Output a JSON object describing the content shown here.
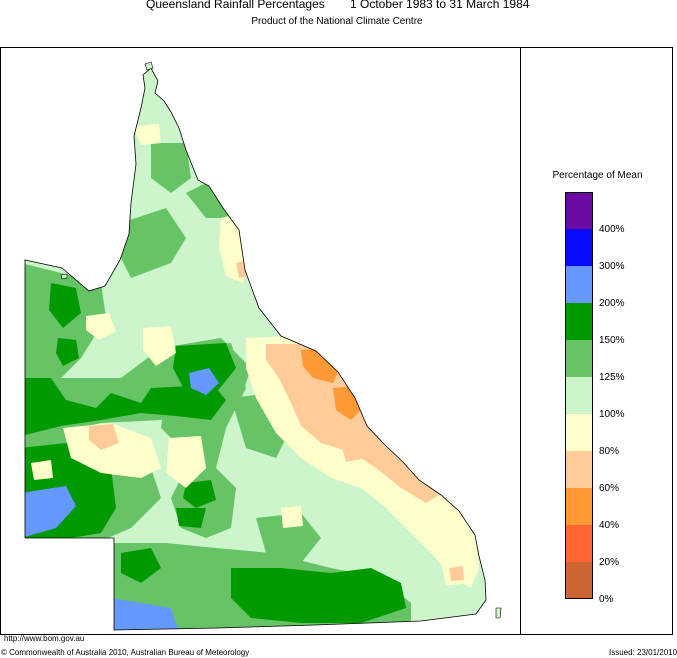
{
  "header": {
    "title": "Queensland Rainfall Percentages",
    "period": "1 October 1983 to 31 March 1984",
    "subtitle": "Product of the National Climate Centre"
  },
  "legend": {
    "title": "Percentage of Mean",
    "classes": [
      {
        "label": "400%",
        "color": "#6a0aa0"
      },
      {
        "label": "300%",
        "color": "#0a0aff"
      },
      {
        "label": "200%",
        "color": "#6699ff"
      },
      {
        "label": "150%",
        "color": "#009900"
      },
      {
        "label": "125%",
        "color": "#66c466"
      },
      {
        "label": "100%",
        "color": "#ccf5cc"
      },
      {
        "label": "80%",
        "color": "#ffffcc"
      },
      {
        "label": "60%",
        "color": "#ffcc99"
      },
      {
        "label": "40%",
        "color": "#ff9933"
      },
      {
        "label": "20%",
        "color": "#ff6633"
      },
      {
        "label": "0%",
        "color": "#cc6633"
      }
    ]
  },
  "footer": {
    "url": "http://www.bom.gov.au",
    "copyright": "© Commonwealth of Australia 2010, Australian Bureau of Meteorology",
    "issued": "Issued: 23/01/2010"
  }
}
